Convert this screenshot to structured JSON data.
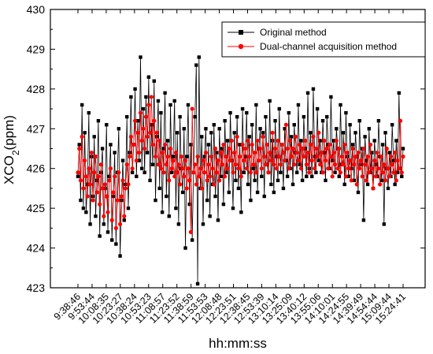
{
  "chart_data": {
    "type": "line",
    "title": "",
    "xlabel": "hh:mm:ss",
    "ylabel": "XCO",
    "ylabel_subscript": "2",
    "ylabel_suffix": "(ppm)",
    "ylim": [
      423,
      430
    ],
    "yticks": [
      423,
      424,
      425,
      426,
      427,
      428,
      429,
      430
    ],
    "xticks": [
      "9:38:46",
      "9:53:44",
      "10:08:35",
      "10:23:27",
      "10:38:24",
      "10:53:23",
      "11:08:57",
      "11:23:52",
      "11:38:59",
      "11:53:53",
      "12:08:48",
      "12:23:51",
      "12:38:45",
      "12:53:39",
      "13:10:14",
      "13:25:09",
      "13:40:12",
      "13:55:06",
      "14:10:01",
      "14:24:55",
      "14:39:49",
      "14:54:44",
      "15:09:44",
      "15:24:41"
    ],
    "legend_position": "top-right",
    "colors": {
      "original": "#000000",
      "dual": "#ff0000"
    },
    "series": [
      {
        "name": "Original method",
        "color": "#000000",
        "marker": "square",
        "values": [
          425.8,
          426.6,
          425.2,
          427.6,
          425.0,
          426.9,
          424.9,
          425.6,
          427.4,
          424.6,
          426.3,
          425.3,
          426.8,
          424.8,
          425.7,
          427.2,
          424.3,
          425.9,
          426.5,
          424.6,
          425.5,
          427.1,
          424.4,
          425.8,
          426.6,
          424.2,
          425.3,
          426.4,
          424.1,
          425.9,
          427.0,
          423.8,
          425.2,
          426.2,
          424.7,
          425.6,
          427.3,
          425.0,
          426.4,
          427.8,
          425.9,
          426.6,
          428.0,
          425.8,
          427.2,
          426.2,
          428.8,
          426.0,
          427.5,
          425.9,
          427.8,
          426.4,
          428.3,
          425.7,
          427.1,
          426.1,
          428.2,
          425.2,
          426.8,
          427.7,
          425.5,
          427.4,
          424.9,
          426.5,
          427.9,
          425.3,
          426.7,
          424.8,
          427.6,
          425.9,
          426.3,
          427.7,
          425.0,
          426.9,
          424.6,
          427.3,
          426.0,
          425.4,
          427.0,
          424.0,
          426.3,
          427.6,
          425.1,
          426.6,
          424.2,
          425.9,
          427.3,
          428.6,
          423.1,
          428.8,
          425.5,
          426.8,
          424.6,
          426.3,
          427.0,
          425.2,
          426.6,
          424.8,
          426.9,
          425.6,
          427.1,
          425.3,
          426.4,
          424.7,
          427.0,
          425.8,
          426.5,
          425.1,
          427.2,
          425.9,
          426.7,
          425.4,
          427.4,
          426.2,
          425.0,
          426.9,
          425.7,
          427.3,
          425.5,
          426.6,
          424.9,
          427.5,
          425.9,
          426.3,
          427.4,
          425.6,
          426.8,
          425.2,
          427.1,
          426.0,
          425.7,
          427.6,
          425.4,
          426.5,
          427.0,
          425.8,
          426.9,
          425.3,
          427.3,
          426.1,
          425.9,
          427.7,
          425.6,
          426.7,
          425.4,
          427.2,
          426.3,
          425.7,
          427.5,
          425.9,
          426.6,
          425.5,
          427.0,
          426.2,
          425.8,
          427.4,
          426.0,
          426.8,
          425.6,
          427.1,
          426.4,
          425.9,
          427.6,
          426.1,
          426.7,
          425.7,
          427.3,
          426.5,
          425.8,
          427.9,
          426.0,
          426.9,
          425.8,
          428.0,
          426.3,
          425.9,
          427.5,
          426.2,
          426.7,
          425.9,
          427.2,
          426.4,
          425.7,
          427.3,
          426.6,
          426.0,
          427.8,
          426.2,
          426.7,
          425.9,
          427.0,
          426.5,
          425.8,
          427.6,
          426.1,
          426.9,
          425.6,
          427.4,
          426.3,
          425.8,
          427.1,
          426.0,
          426.6,
          425.7,
          426.9,
          426.3,
          425.4,
          427.2,
          426.1,
          426.5,
          424.7,
          426.8,
          426.2,
          425.6,
          427.0,
          425.9,
          426.4,
          425.5,
          426.7,
          426.1,
          425.8,
          427.2,
          426.3,
          425.7,
          426.6,
          424.6,
          426.9,
          426.0,
          425.5,
          426.4,
          425.8,
          427.1,
          426.2,
          425.6,
          426.7,
          425.9,
          427.9,
          426.0,
          425.8,
          426.5
        ]
      },
      {
        "name": "Dual-channel acquisition method",
        "color": "#ff0000",
        "marker": "circle",
        "values": [
          425.9,
          426.5,
          425.7,
          426.8,
          425.5,
          426.2,
          425.8,
          425.3,
          426.0,
          425.6,
          426.4,
          425.2,
          425.9,
          426.3,
          425.4,
          425.8,
          425.1,
          426.1,
          425.5,
          424.8,
          425.6,
          425.3,
          424.9,
          425.7,
          426.0,
          424.7,
          425.4,
          425.8,
          424.5,
          425.2,
          425.9,
          424.6,
          425.3,
          425.7,
          424.8,
          425.5,
          426.1,
          425.6,
          426.3,
          426.8,
          426.0,
          426.6,
          427.2,
          426.2,
          426.9,
          426.4,
          427.4,
          426.7,
          427.0,
          426.5,
          427.3,
          426.8,
          427.6,
          426.9,
          427.8,
          426.6,
          427.2,
          426.3,
          426.9,
          426.1,
          426.7,
          426.0,
          426.4,
          425.9,
          426.6,
          426.1,
          426.3,
          425.7,
          426.5,
          426.0,
          426.2,
          425.8,
          426.4,
          425.9,
          426.1,
          425.6,
          426.3,
          426.0,
          425.8,
          426.2,
          425.5,
          426.0,
          425.7,
          424.4,
          427.5,
          425.9,
          426.1,
          425.6,
          426.3,
          425.8,
          426.0,
          425.5,
          426.2,
          425.9,
          426.4,
          425.7,
          426.1,
          425.8,
          426.3,
          426.0,
          425.6,
          426.5,
          425.9,
          426.2,
          425.7,
          426.4,
          426.1,
          426.6,
          425.8,
          426.3,
          426.0,
          426.5,
          426.2,
          426.7,
          425.9,
          426.4,
          426.1,
          426.8,
          426.0,
          426.3,
          425.8,
          426.6,
          426.2,
          426.5,
          426.0,
          426.7,
          426.3,
          425.9,
          426.6,
          426.1,
          426.4,
          425.9,
          426.7,
          426.2,
          426.5,
          426.0,
          426.8,
          426.3,
          426.1,
          426.6,
          425.9,
          426.4,
          426.2,
          426.9,
          426.1,
          426.5,
          426.0,
          426.7,
          426.3,
          426.1,
          426.6,
          426.4,
          426.2,
          427.1,
          426.5,
          426.0,
          426.7,
          426.3,
          426.5,
          426.1,
          426.8,
          426.4,
          426.2,
          426.6,
          426.0,
          426.5,
          426.3,
          426.7,
          426.1,
          426.4,
          425.9,
          426.6,
          426.2,
          426.8,
          426.0,
          426.5,
          426.3,
          426.9,
          426.1,
          426.4,
          425.9,
          426.7,
          426.2,
          426.5,
          426.0,
          426.6,
          426.3,
          425.8,
          426.4,
          426.1,
          426.7,
          426.0,
          426.5,
          425.9,
          426.3,
          426.1,
          426.6,
          425.8,
          426.4,
          426.0,
          426.2,
          425.7,
          426.5,
          426.1,
          426.3,
          425.6,
          426.4,
          426.0,
          426.2,
          425.8,
          426.5,
          426.1,
          425.7,
          426.3,
          425.9,
          426.6,
          426.0,
          425.5,
          426.2,
          425.8,
          426.4,
          426.0,
          425.6,
          426.3,
          425.9,
          426.1,
          425.7,
          426.5,
          426.0,
          425.8,
          426.3,
          426.1,
          425.9,
          426.4,
          425.7,
          426.2,
          426.0,
          427.2,
          425.9,
          426.3
        ]
      }
    ]
  }
}
